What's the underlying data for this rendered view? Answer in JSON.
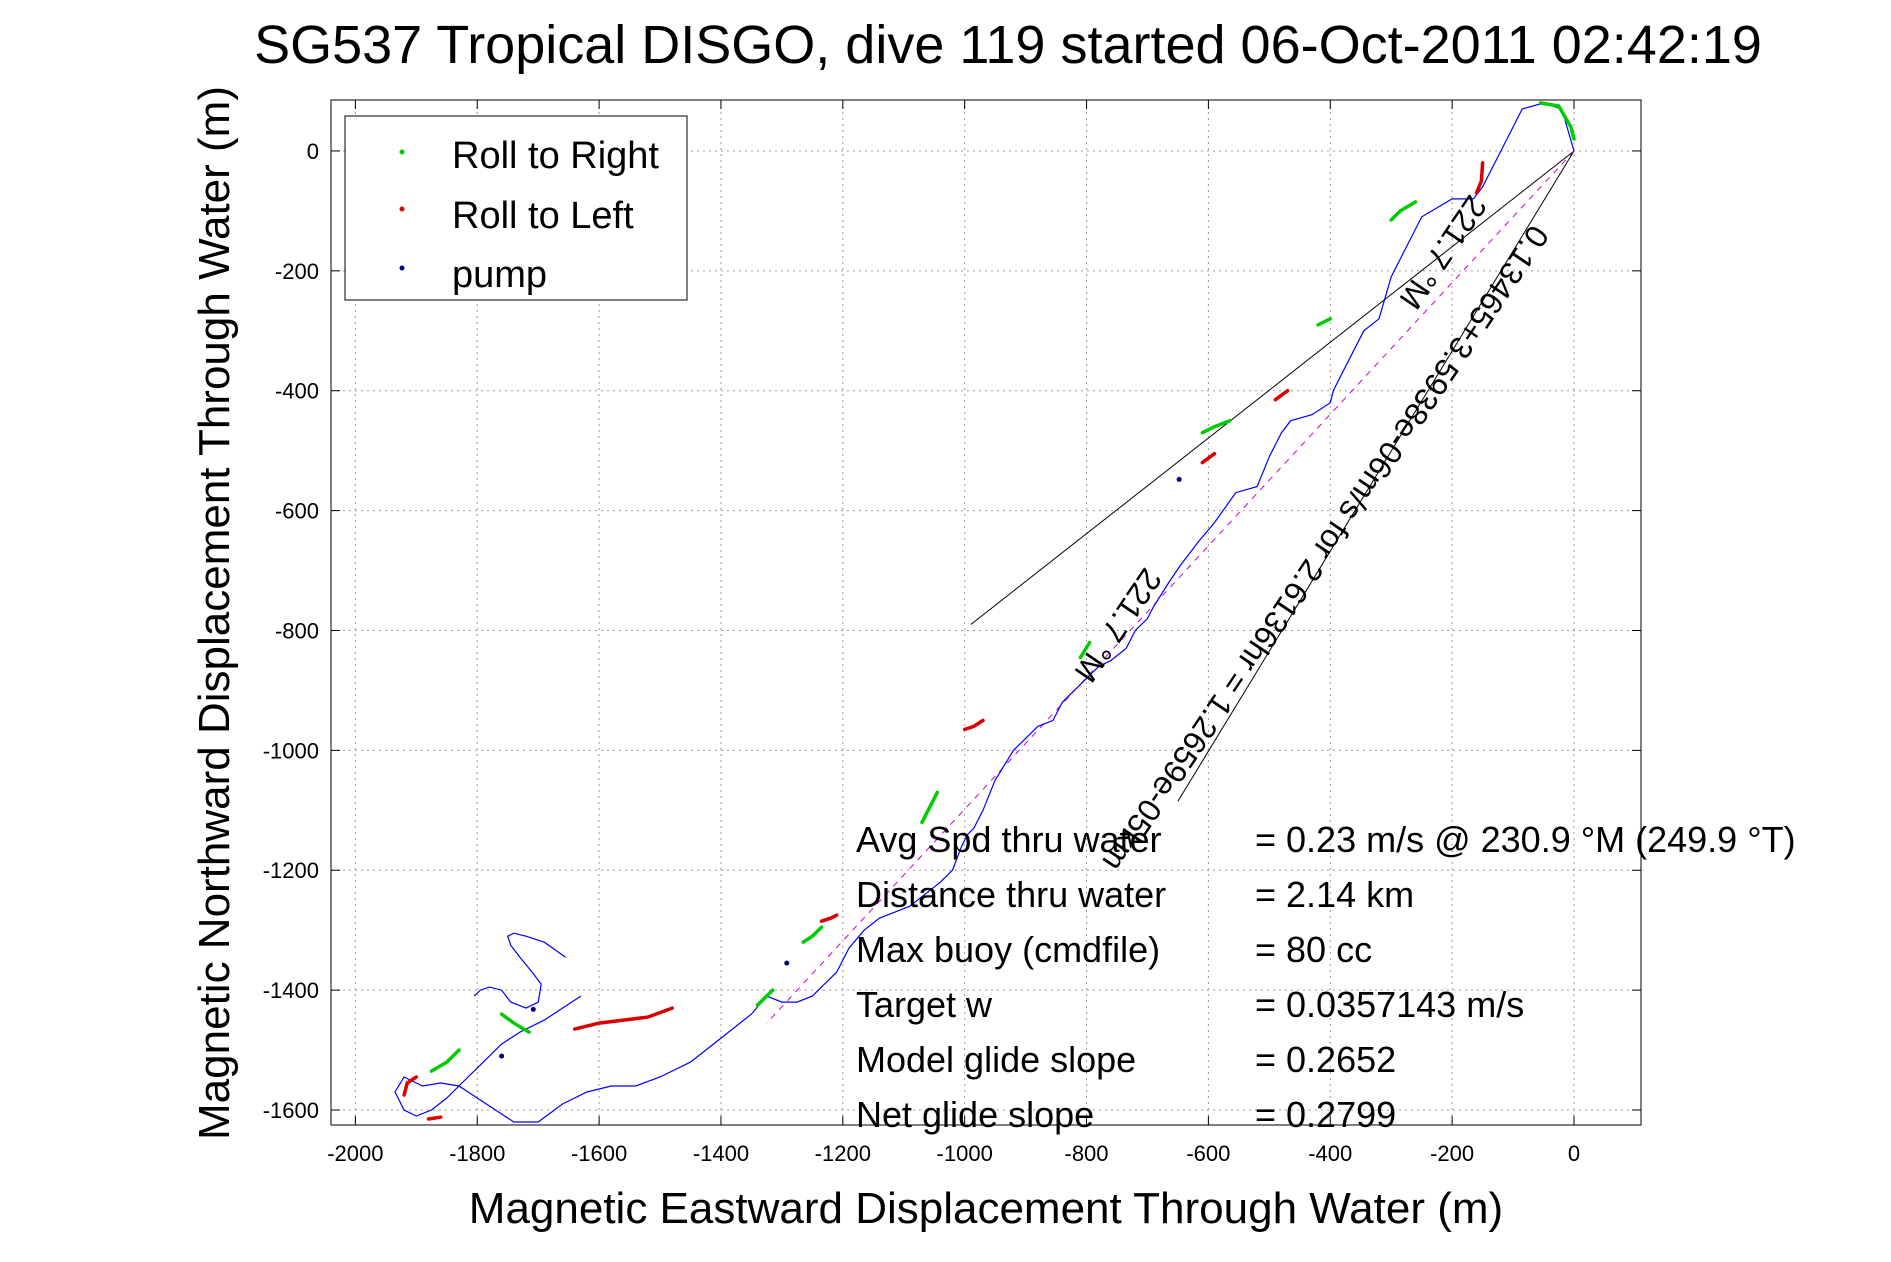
{
  "chart_data": {
    "type": "scatter",
    "title": "SG537 Tropical DISGO, dive 119 started 06-Oct-2011 02:42:19",
    "xlabel": "Magnetic Eastward Displacement Through Water (m)",
    "ylabel": "Magnetic Northward Displacement Through Water (m)",
    "xlim": [
      -2040,
      110
    ],
    "ylim": [
      -1625,
      85
    ],
    "xticks": [
      -2000,
      -1800,
      -1600,
      -1400,
      -1200,
      -1000,
      -800,
      -600,
      -400,
      -200,
      0
    ],
    "yticks": [
      -1600,
      -1400,
      -1200,
      -1000,
      -800,
      -600,
      -400,
      -200,
      0
    ],
    "grid": true,
    "legend": {
      "placement": "top-left",
      "entries": [
        "Roll to Right",
        "Roll to Left",
        "pump"
      ]
    },
    "colors": {
      "right": "#00cc00",
      "left": "#dd0000",
      "pump": "#000080",
      "track": "#0000ff",
      "guide": "#000000"
    },
    "track": {
      "x": [
        0,
        -20,
        -50,
        -85,
        -110,
        -130,
        -150,
        -165,
        -200,
        -250,
        -300,
        -320,
        -345,
        -360,
        -380,
        -395,
        -400,
        -430,
        -465,
        -480,
        -500,
        -520,
        -555,
        -590,
        -615,
        -645,
        -665,
        -690,
        -700,
        -720,
        -735,
        -760,
        -780,
        -800,
        -820,
        -840,
        -855,
        -880,
        -900,
        -920,
        -950,
        -970,
        -985,
        -995,
        -1005,
        -1020,
        -1040,
        -1065,
        -1090,
        -1115,
        -1140,
        -1165,
        -1190,
        -1210,
        -1230,
        -1250,
        -1275,
        -1300,
        -1325,
        -1350,
        -1400,
        -1450,
        -1500,
        -1540,
        -1580,
        -1620,
        -1660,
        -1700,
        -1740,
        -1770,
        -1800,
        -1830,
        -1860,
        -1890,
        -1920,
        -1935,
        -1920,
        -1900,
        -1875,
        -1850,
        -1820,
        -1790,
        -1760,
        -1730,
        -1690,
        -1660,
        -1630
      ],
      "y": [
        0,
        70,
        80,
        70,
        20,
        -20,
        -60,
        -80,
        -80,
        -110,
        -210,
        -280,
        -300,
        -330,
        -370,
        -400,
        -420,
        -440,
        -450,
        -470,
        -510,
        -560,
        -570,
        -620,
        -650,
        -690,
        -720,
        -760,
        -780,
        -800,
        -830,
        -850,
        -860,
        -880,
        -900,
        -920,
        -950,
        -960,
        -980,
        -1000,
        -1050,
        -1100,
        -1130,
        -1140,
        -1160,
        -1200,
        -1220,
        -1240,
        -1260,
        -1270,
        -1280,
        -1300,
        -1330,
        -1370,
        -1390,
        -1410,
        -1420,
        -1420,
        -1410,
        -1440,
        -1480,
        -1520,
        -1545,
        -1560,
        -1560,
        -1570,
        -1590,
        -1620,
        -1620,
        -1600,
        -1580,
        -1560,
        -1555,
        -1560,
        -1545,
        -1570,
        -1600,
        -1610,
        -1600,
        -1580,
        -1550,
        -1520,
        -1490,
        -1470,
        -1450,
        -1430,
        -1410
      ]
    },
    "roll_right_segments": [
      {
        "x": [
          -55,
          -25,
          -5,
          0
        ],
        "y": [
          80,
          75,
          40,
          20
        ]
      },
      {
        "x": [
          -260,
          -285,
          -300
        ],
        "y": [
          -85,
          -100,
          -115
        ]
      },
      {
        "x": [
          -400,
          -420
        ],
        "y": [
          -280,
          -290
        ]
      },
      {
        "x": [
          -565,
          -590,
          -610
        ],
        "y": [
          -450,
          -460,
          -470
        ]
      },
      {
        "x": [
          -795,
          -810
        ],
        "y": [
          -820,
          -845
        ]
      },
      {
        "x": [
          -1045,
          -1055,
          -1070
        ],
        "y": [
          -1070,
          -1090,
          -1120
        ]
      },
      {
        "x": [
          -1235,
          -1250,
          -1265
        ],
        "y": [
          -1295,
          -1310,
          -1320
        ]
      },
      {
        "x": [
          -1315,
          -1330,
          -1340
        ],
        "y": [
          -1400,
          -1415,
          -1425
        ]
      },
      {
        "x": [
          -1715,
          -1740,
          -1760
        ],
        "y": [
          -1470,
          -1455,
          -1440
        ]
      },
      {
        "x": [
          -1830,
          -1850,
          -1875
        ],
        "y": [
          -1500,
          -1520,
          -1535
        ]
      }
    ],
    "roll_left_segments": [
      {
        "x": [
          -150,
          -152,
          -160
        ],
        "y": [
          -20,
          -50,
          -70
        ]
      },
      {
        "x": [
          -470,
          -490
        ],
        "y": [
          -400,
          -415
        ]
      },
      {
        "x": [
          -590,
          -610
        ],
        "y": [
          -505,
          -520
        ]
      },
      {
        "x": [
          -970,
          -985,
          -1000
        ],
        "y": [
          -950,
          -960,
          -965
        ]
      },
      {
        "x": [
          -1210,
          -1220,
          -1235
        ],
        "y": [
          -1275,
          -1280,
          -1285
        ]
      },
      {
        "x": [
          -1480,
          -1520,
          -1560,
          -1600,
          -1640
        ],
        "y": [
          -1430,
          -1445,
          -1450,
          -1455,
          -1465
        ]
      },
      {
        "x": [
          -1900,
          -1915,
          -1920
        ],
        "y": [
          -1545,
          -1555,
          -1575
        ]
      },
      {
        "x": [
          -1860,
          -1880
        ],
        "y": [
          -1612,
          -1615
        ]
      }
    ],
    "pump_points": [
      {
        "x": -648,
        "y": -548
      },
      {
        "x": -1292,
        "y": -1355
      },
      {
        "x": -1760,
        "y": -1510
      },
      {
        "x": -1708,
        "y": -1432
      }
    ],
    "guide_lines": [
      {
        "x": [
          0,
          -990
        ],
        "y": [
          0,
          -790
        ]
      },
      {
        "x": [
          0,
          -650
        ],
        "y": [
          0,
          -1085
        ]
      }
    ],
    "centerline": {
      "x": [
        0,
        -1325
      ],
      "y": [
        0,
        -1455
      ]
    },
    "upper_loop": {
      "x": [
        -1655,
        -1690,
        -1720,
        -1740,
        -1750,
        -1745,
        -1730,
        -1710,
        -1695,
        -1700,
        -1720,
        -1745,
        -1760,
        -1780,
        -1795,
        -1805
      ],
      "y": [
        -1345,
        -1320,
        -1310,
        -1305,
        -1310,
        -1325,
        -1345,
        -1370,
        -1390,
        -1420,
        -1430,
        -1420,
        -1400,
        -1395,
        -1400,
        -1410
      ]
    },
    "annotations": [
      "221.7 °M",
      "0.13465+3.5938e-06m/s for 2.6136hr = 1.2659e-05km",
      "221.7 °M"
    ],
    "stats": [
      {
        "label": "Avg Spd thru water",
        "value": "=  0.23 m/s @ 230.9 °M (249.9 °T)"
      },
      {
        "label": "Distance thru water",
        "value": "=  2.14 km"
      },
      {
        "label": "Max buoy (cmdfile)",
        "value": "= 80 cc"
      },
      {
        "label": "Target w",
        "value": "= 0.0357143 m/s"
      },
      {
        "label": "Model glide slope",
        "value": "= 0.2652"
      },
      {
        "label": "Net glide slope",
        "value": "= 0.2799"
      }
    ]
  }
}
